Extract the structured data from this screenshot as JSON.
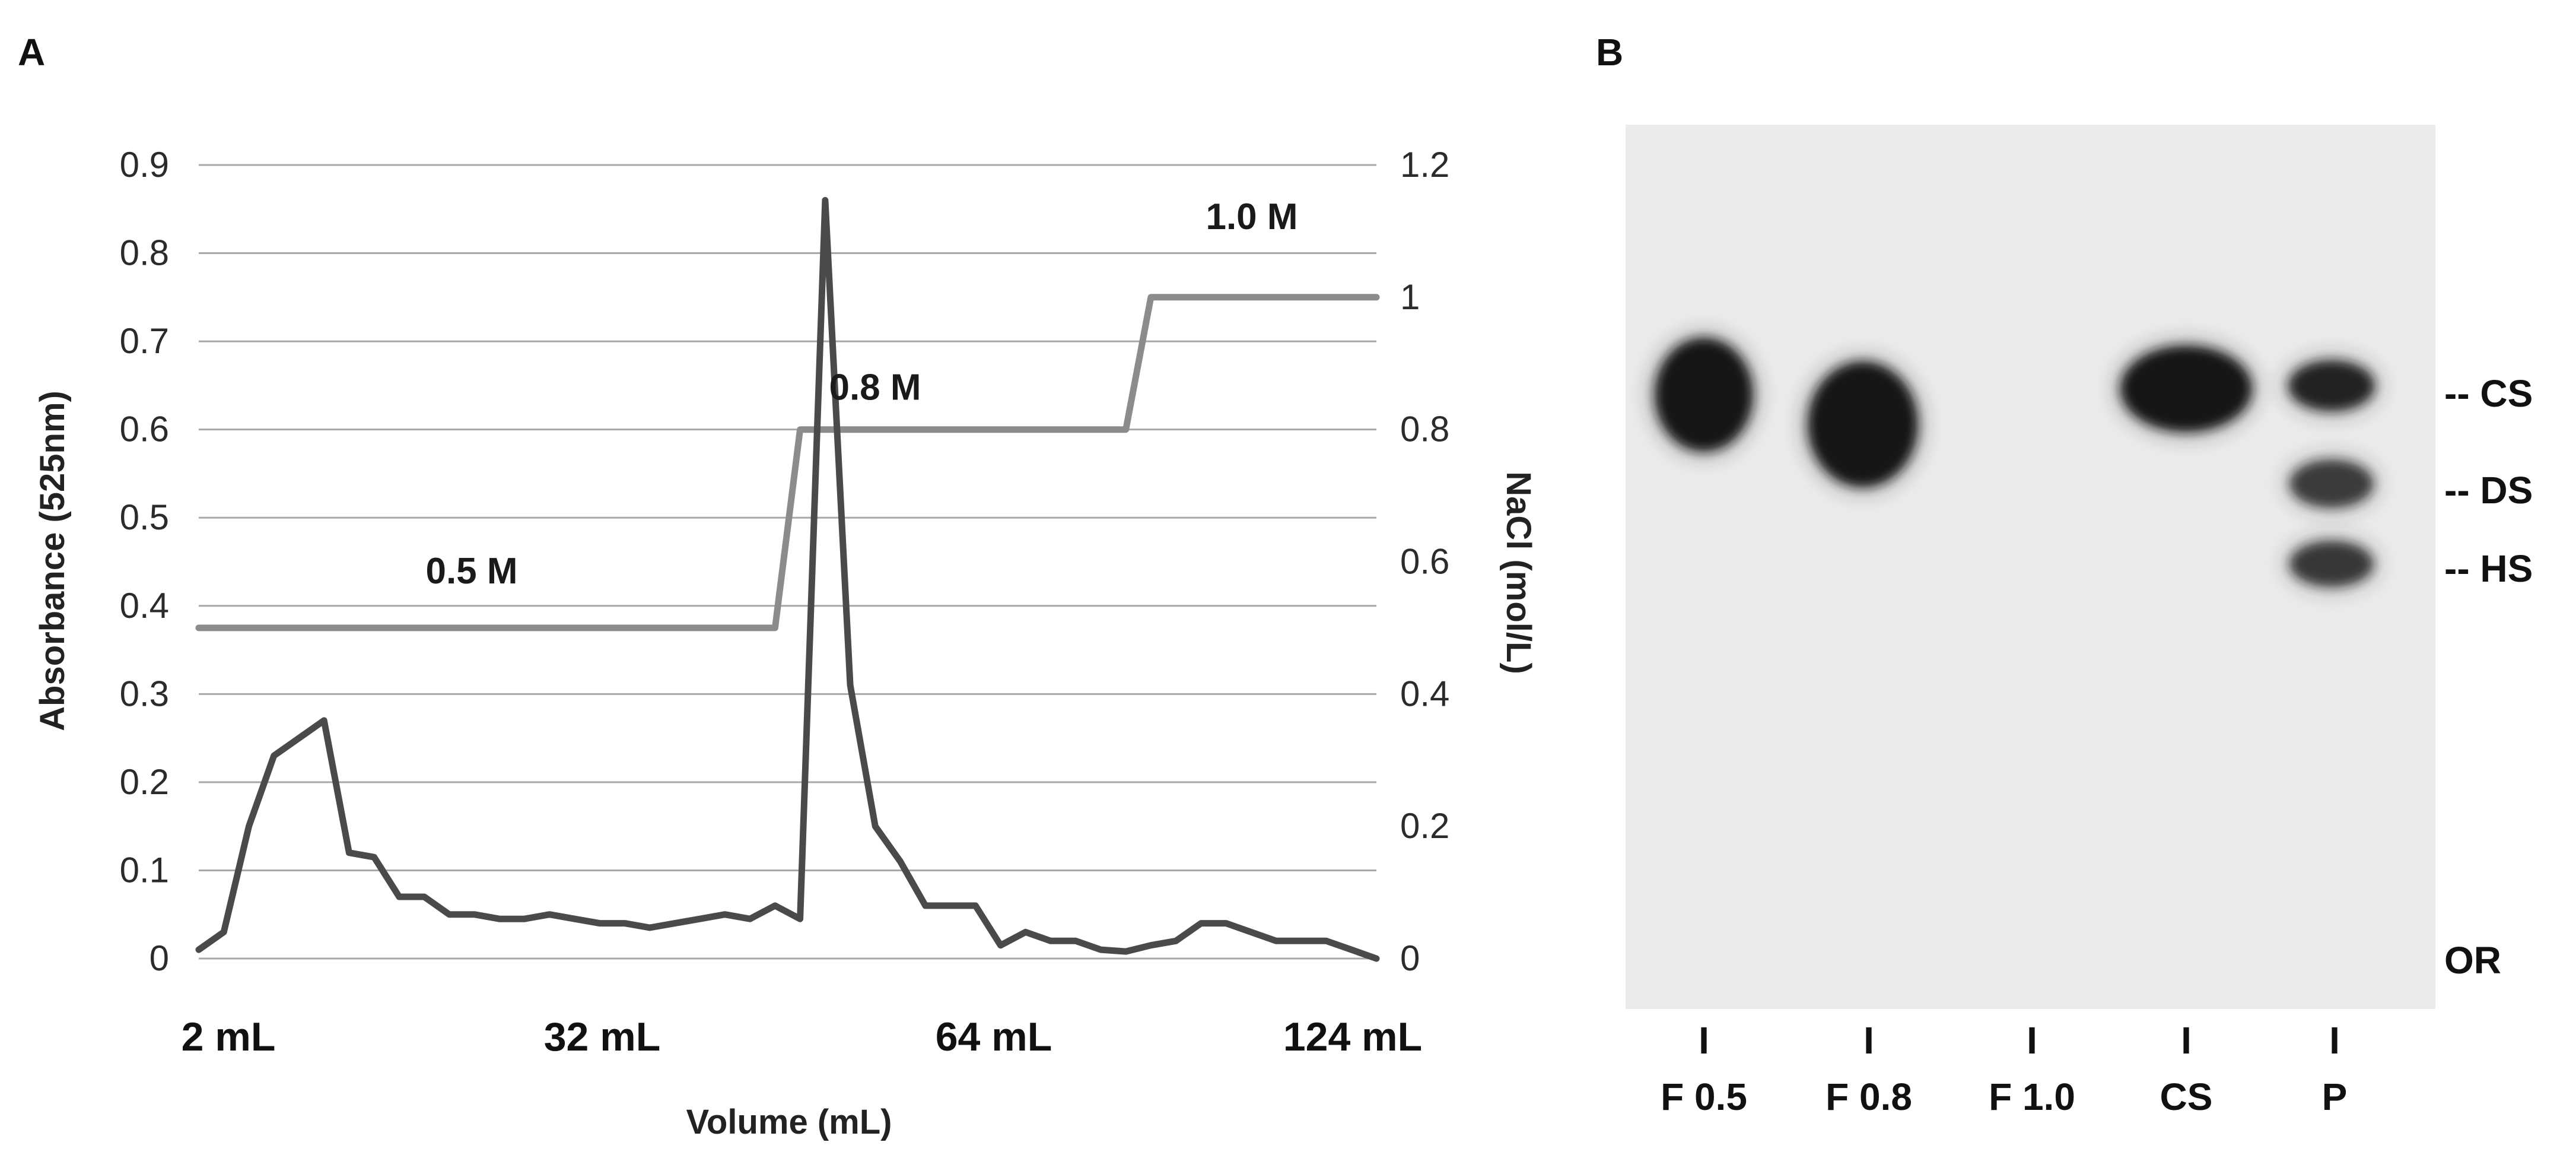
{
  "panel_a_label": "A",
  "panel_b_label": "B",
  "chart_data": [
    {
      "type": "line",
      "panel": "A",
      "title": "",
      "xlabel": "Volume (mL)",
      "ylabel": "Absorbance  (525nm)",
      "y2label": "NaCl (mol/L)",
      "ylim": [
        0,
        0.9
      ],
      "y2lim": [
        0,
        1.2
      ],
      "yticks": [
        "0",
        "0.1",
        "0.2",
        "0.3",
        "0.4",
        "0.5",
        "0.6",
        "0.7",
        "0.8",
        "0.9"
      ],
      "y2ticks": [
        "0",
        "0.2",
        "0.4",
        "0.6",
        "0.8",
        "1",
        "1.2"
      ],
      "xtick_labels": [
        "2 mL",
        "32 mL",
        "64 mL",
        "124 mL"
      ],
      "grid": true,
      "colors": {
        "absorbance": "#4a4a4a",
        "nacl": "#8c8c8c",
        "grid": "#a8a8a8"
      },
      "series": [
        {
          "axis": "left",
          "values": [
            0.01,
            0.03,
            0.15,
            0.23,
            0.25,
            0.27,
            0.12,
            0.115,
            0.07,
            0.07,
            0.05,
            0.05,
            0.045,
            0.045,
            0.05,
            0.045,
            0.04,
            0.04,
            0.035,
            0.04,
            0.045,
            0.05,
            0.045,
            0.06,
            0.045,
            0.86,
            0.31,
            0.15,
            0.11,
            0.06,
            0.06,
            0.06,
            0.015,
            0.03,
            0.02,
            0.02,
            0.01,
            0.008,
            0.015,
            0.02,
            0.04,
            0.04,
            0.03,
            0.02,
            0.02,
            0.02,
            0.01,
            0.0
          ]
        },
        {
          "axis": "right",
          "values": [
            0.5,
            0.5,
            0.5,
            0.5,
            0.5,
            0.5,
            0.5,
            0.5,
            0.5,
            0.5,
            0.5,
            0.5,
            0.5,
            0.5,
            0.5,
            0.5,
            0.5,
            0.5,
            0.5,
            0.5,
            0.5,
            0.5,
            0.5,
            0.5,
            0.8,
            0.8,
            0.8,
            0.8,
            0.8,
            0.8,
            0.8,
            0.8,
            0.8,
            0.8,
            0.8,
            0.8,
            0.8,
            0.8,
            1.0,
            1.0,
            1.0,
            1.0,
            1.0,
            1.0,
            1.0,
            1.0,
            1.0,
            1.0
          ]
        }
      ],
      "annotations": [
        "0.5 M",
        "0.8 M",
        "1.0 M"
      ]
    },
    {
      "type": "gel",
      "panel": "B",
      "lanes": [
        "F 0.5",
        "F 0.8",
        "F 1.0",
        "CS",
        "P"
      ],
      "lane_tick": "I",
      "band_labels": [
        "-- CS",
        "-- DS",
        "-- HS",
        "OR"
      ],
      "colors": {
        "background": "#ebebeb",
        "band": "#141414"
      }
    }
  ]
}
